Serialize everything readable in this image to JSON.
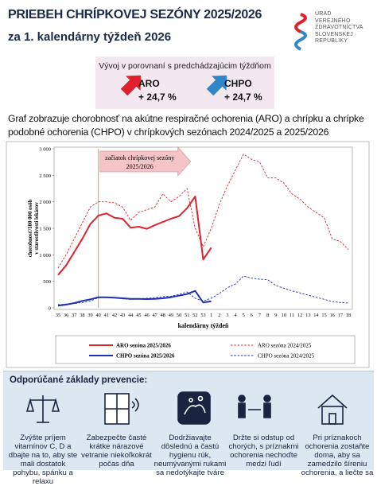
{
  "header": {
    "title": "PRIEBEH CHRÍPKOVEJ SEZÓNY 2025/2026",
    "subtitle": "za 1. kalendárny týždeň 2026",
    "logo": [
      "ÚRAD",
      "VEREJNÉHO",
      "ZDRAVOTNÍCTVA",
      "SLOVENSKEJ",
      "REPUBLIKY"
    ]
  },
  "comparison": {
    "title": "Vývoj v porovnaní s predchádzajúcim týždňom",
    "items": [
      {
        "name": "ARO",
        "change": "+ 24,7 %",
        "color": "#e0202a"
      },
      {
        "name": "CHPO",
        "change": "+ 24,7 %",
        "color": "#2f86c8"
      }
    ]
  },
  "description": "Graf zobrazuje chorobnosť na akútne respiračné ochorenia (ARO) a chrípku a chrípke podobné ochorenia (CHPO) v chrípkových sezónach 2024/2025 a 2025/2026",
  "chart_data": {
    "type": "line",
    "categories": [
      "35",
      "36",
      "37",
      "38",
      "39",
      "40",
      "41",
      "42",
      "43",
      "44",
      "45",
      "46",
      "47",
      "48",
      "49",
      "50",
      "51",
      "52",
      "53",
      "1",
      "2",
      "3",
      "4",
      "5",
      "6",
      "7",
      "8",
      "9",
      "10",
      "11",
      "12",
      "13",
      "14",
      "15",
      "16",
      "17",
      "18"
    ],
    "xlabel": "kalendárny týždeň",
    "ylabel": [
      "chorobnosť/100 000 osôb",
      "v starostlivosti lekárov"
    ],
    "ylim": [
      0,
      3000
    ],
    "yticks": [
      0,
      500,
      {
        "value": 1000,
        "label": "1 000"
      },
      {
        "value": 1500,
        "label": "1 500"
      },
      {
        "value": 2000,
        "label": "2 000"
      },
      {
        "value": 2500,
        "label": "2 500"
      },
      {
        "value": 3000,
        "label": "3 000"
      }
    ],
    "grid": false,
    "annotation": {
      "text": [
        "začiatok chrípkovej sezóny",
        "2025/2026"
      ],
      "category": "40"
    },
    "series": [
      {
        "name": "ARO sezóna 2025/2026",
        "color": "#e0202a",
        "dash": false,
        "values": [
          620,
          800,
          1050,
          1300,
          1580,
          1740,
          1780,
          1700,
          1680,
          1510,
          1530,
          1490,
          1560,
          1620,
          1680,
          1730,
          1880,
          2100,
          910,
          1135,
          null,
          null,
          null,
          null,
          null,
          null,
          null,
          null,
          null,
          null,
          null,
          null,
          null,
          null,
          null,
          null,
          null
        ]
      },
      {
        "name": "CHPO sezóna 2025/2026",
        "color": "#1f2fb8",
        "dash": false,
        "values": [
          40,
          60,
          90,
          130,
          160,
          200,
          200,
          190,
          180,
          170,
          170,
          165,
          170,
          180,
          200,
          230,
          260,
          320,
          100,
          125,
          null,
          null,
          null,
          null,
          null,
          null,
          null,
          null,
          null,
          null,
          null,
          null,
          null,
          null,
          null,
          null,
          null
        ]
      },
      {
        "name": "ARO sezóna 2024/2025",
        "color": "#e0202a",
        "dash": true,
        "values": [
          750,
          1000,
          1300,
          1600,
          1900,
          2000,
          2000,
          1980,
          1900,
          1650,
          1800,
          1850,
          1900,
          2150,
          2000,
          2100,
          2250,
          1500,
          1150,
          1500,
          1950,
          2300,
          2600,
          2900,
          2800,
          2750,
          2450,
          2450,
          2350,
          2150,
          2050,
          1900,
          1800,
          1700,
          1300,
          1250,
          1100
        ]
      },
      {
        "name": "CHPO sezóna 2024/2025",
        "color": "#1f2fb8",
        "dash": true,
        "values": [
          60,
          70,
          80,
          100,
          130,
          190,
          200,
          190,
          170,
          160,
          170,
          180,
          190,
          210,
          220,
          250,
          300,
          180,
          130,
          180,
          270,
          380,
          450,
          600,
          560,
          540,
          530,
          420,
          370,
          320,
          280,
          240,
          200,
          160,
          120,
          100,
          90
        ]
      }
    ]
  },
  "prevention": {
    "title": "Odporúčané základy prevencie:",
    "items": [
      "Zvýšte príjem vitamínov C, D a dbajte na to, aby ste mali dostatok pohybu, spánku a relaxu",
      "Zabezpečte časté krátke nárazové vetranie niekoľkokrát počas dňa",
      "Dodržiavajte dôslednú a častú hygienu rúk, neumývanými rukami sa nedotýkajte tváre",
      "Držte si odstup od chorých, s príznakmi ochorenia nechoďte medzi ľudí",
      "Pri príznakoch ochorenia zostaňte doma, aby sa zamedzilo šíreniu ochorenia, a liečte sa"
    ]
  }
}
